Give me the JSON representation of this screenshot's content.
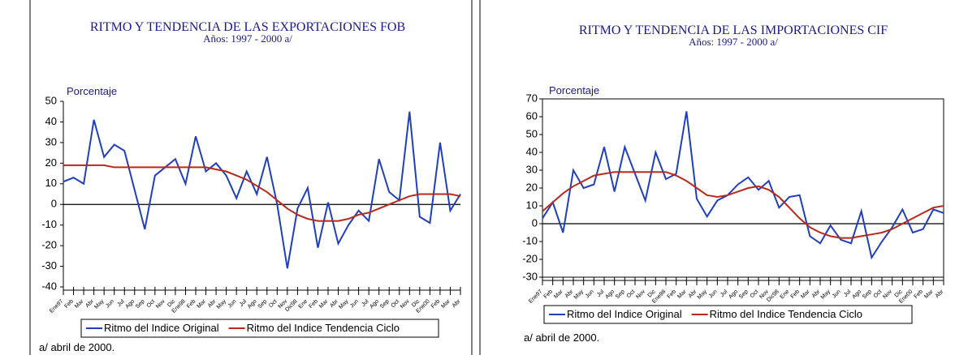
{
  "chart_data": [
    {
      "type": "line",
      "title": "RITMO Y TENDENCIA DE LAS EXPORTACIONES FOB",
      "subtitle": "Años: 1997 - 2000 a/",
      "y_label": "Porcentaje",
      "note": "a/ abril de 2000.",
      "categories": [
        "Ene97",
        "Feb",
        "Mar",
        "Abr",
        "May",
        "Jun",
        "Jul",
        "Ago",
        "Sep",
        "Oct",
        "Nov",
        "Dic",
        "Ene98",
        "Feb",
        "Mar",
        "Abr",
        "May",
        "Jun",
        "Jul",
        "Ago",
        "Sep",
        "Oct",
        "Nov",
        "Dic98",
        "Ene",
        "Feb",
        "Mar",
        "Abr",
        "May",
        "Jun",
        "Jul",
        "Ago",
        "Sep",
        "Oct",
        "Nov",
        "Dic",
        "Ene00",
        "Feb",
        "Mar",
        "Abr"
      ],
      "series": [
        {
          "name": "Ritmo del Indice Original",
          "color": "#1f3fbf",
          "values": [
            11,
            13,
            10,
            41,
            23,
            29,
            26,
            7,
            -12,
            14,
            18,
            22,
            10,
            33,
            16,
            20,
            14,
            3,
            16,
            5,
            23,
            0,
            -31,
            -2,
            8,
            -21,
            1,
            -19,
            -10,
            -3,
            -8,
            22,
            6,
            2,
            45,
            -6,
            -9,
            30,
            -3,
            5
          ]
        },
        {
          "name": "Ritmo del Indice Tendencia Ciclo",
          "color": "#b8281c",
          "values": [
            19,
            19,
            19,
            19,
            19,
            18,
            18,
            18,
            18,
            18,
            18,
            18,
            18,
            18,
            18,
            17,
            16,
            14,
            12,
            9,
            6,
            2,
            -2,
            -5,
            -7,
            -8,
            -8,
            -8,
            -7,
            -5,
            -4,
            -2,
            0,
            2,
            4,
            5,
            5,
            5,
            5,
            4
          ]
        }
      ],
      "ylim": [
        -40,
        50
      ],
      "yticks": [
        -40,
        -30,
        -20,
        -10,
        0,
        10,
        20,
        30,
        40,
        50
      ],
      "grid": false,
      "frame": false
    },
    {
      "type": "line",
      "title": "RITMO Y TENDENCIA DE LAS IMPORTACIONES CIF",
      "subtitle": "Años: 1997 - 2000 a/",
      "y_label": "Porcentaje",
      "note": "a/ abril de 2000.",
      "categories": [
        "Ene97",
        "Feb",
        "Mar",
        "Abr",
        "May",
        "Jun",
        "Jul",
        "Ago",
        "Sep",
        "Oct",
        "Nov",
        "Dic",
        "Ene98",
        "Feb",
        "Mar",
        "Abr",
        "May",
        "Jun",
        "Jul",
        "Ago",
        "Sep",
        "Oct",
        "Nov",
        "Dic98",
        "Ene",
        "Feb",
        "Mar",
        "Abr",
        "May",
        "Jun",
        "Jul",
        "Ago",
        "Sep",
        "Oct",
        "Nov",
        "Dic",
        "Ene00",
        "Feb",
        "Mar",
        "Abr"
      ],
      "series": [
        {
          "name": "Ritmo del Indice Original",
          "color": "#1f3fbf",
          "values": [
            3,
            12,
            -5,
            30,
            20,
            22,
            43,
            18,
            43,
            28,
            13,
            40,
            25,
            28,
            63,
            14,
            4,
            13,
            16,
            22,
            26,
            19,
            24,
            9,
            15,
            16,
            -7,
            -11,
            -1,
            -9,
            -11,
            7,
            -19,
            -10,
            -2,
            8,
            -5,
            -3,
            8,
            6
          ]
        },
        {
          "name": "Ritmo del Indice Tendencia Ciclo",
          "color": "#b8281c",
          "values": [
            7,
            12,
            17,
            21,
            24,
            27,
            28,
            29,
            29,
            29,
            29,
            29,
            29,
            27,
            24,
            20,
            16,
            15,
            16,
            18,
            20,
            21,
            19,
            15,
            9,
            3,
            -2,
            -5,
            -7,
            -8,
            -8,
            -7,
            -6,
            -5,
            -3,
            0,
            3,
            6,
            9,
            10
          ]
        }
      ],
      "ylim": [
        -30,
        70
      ],
      "yticks": [
        -30,
        -20,
        -10,
        0,
        10,
        20,
        30,
        40,
        50,
        60,
        70
      ],
      "grid": false,
      "frame": true
    }
  ]
}
